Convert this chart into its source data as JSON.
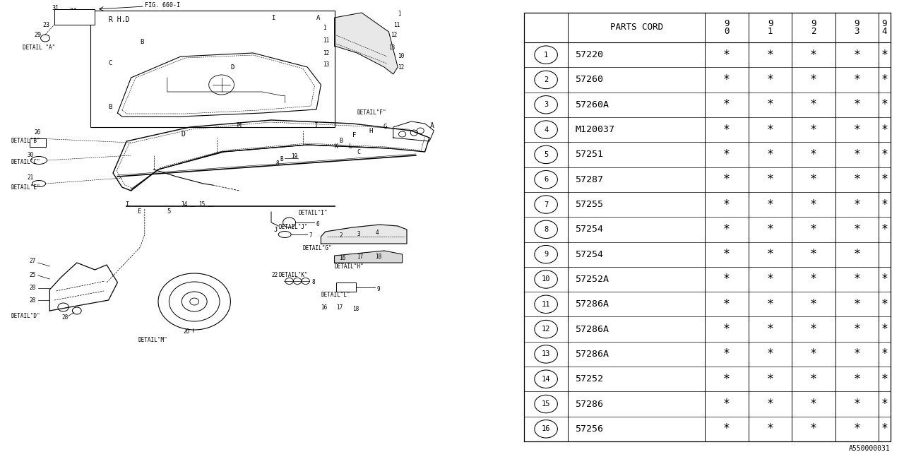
{
  "bg_color": "#ffffff",
  "rows": [
    {
      "num": 1,
      "code": "57220",
      "marks": [
        true,
        true,
        true,
        true,
        true
      ]
    },
    {
      "num": 2,
      "code": "57260",
      "marks": [
        true,
        true,
        true,
        true,
        true
      ]
    },
    {
      "num": 3,
      "code": "57260A",
      "marks": [
        true,
        true,
        true,
        true,
        true
      ]
    },
    {
      "num": 4,
      "code": "M120037",
      "marks": [
        true,
        true,
        true,
        true,
        true
      ]
    },
    {
      "num": 5,
      "code": "57251",
      "marks": [
        true,
        true,
        true,
        true,
        true
      ]
    },
    {
      "num": 6,
      "code": "57287",
      "marks": [
        true,
        true,
        true,
        true,
        true
      ]
    },
    {
      "num": 7,
      "code": "57255",
      "marks": [
        true,
        true,
        true,
        true,
        true
      ]
    },
    {
      "num": 8,
      "code": "57254",
      "marks": [
        true,
        true,
        true,
        true,
        true
      ]
    },
    {
      "num": 9,
      "code": "57254",
      "marks": [
        true,
        true,
        true,
        true,
        false
      ]
    },
    {
      "num": 10,
      "code": "57252A",
      "marks": [
        true,
        true,
        true,
        true,
        true
      ]
    },
    {
      "num": 11,
      "code": "57286A",
      "marks": [
        true,
        true,
        true,
        true,
        true
      ]
    },
    {
      "num": 12,
      "code": "57286A",
      "marks": [
        true,
        true,
        true,
        true,
        true
      ]
    },
    {
      "num": 13,
      "code": "57286A",
      "marks": [
        true,
        true,
        true,
        true,
        true
      ]
    },
    {
      "num": 14,
      "code": "57252",
      "marks": [
        true,
        true,
        true,
        true,
        true
      ]
    },
    {
      "num": 15,
      "code": "57286",
      "marks": [
        true,
        true,
        true,
        true,
        true
      ]
    },
    {
      "num": 16,
      "code": "57256",
      "marks": [
        true,
        true,
        true,
        true,
        true
      ]
    }
  ],
  "footer_code": "A550000031",
  "years": [
    "9\n0",
    "9\n1",
    "9\n2",
    "9\n3",
    "9\n4"
  ]
}
